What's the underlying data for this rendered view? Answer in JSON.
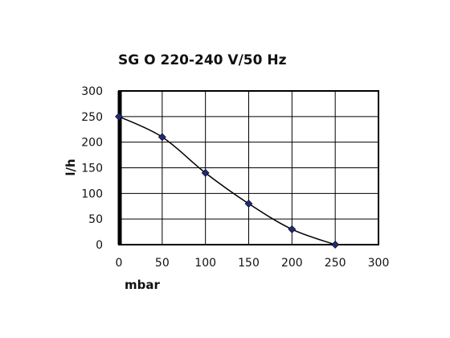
{
  "chart_data": {
    "type": "line",
    "title": "SG O 220-240 V/50 Hz",
    "xlabel": "mbar",
    "ylabel": "l/h",
    "xlim": [
      0,
      300
    ],
    "ylim": [
      0,
      300
    ],
    "x_ticks": [
      0,
      50,
      100,
      150,
      200,
      250,
      300
    ],
    "y_ticks": [
      0,
      50,
      100,
      150,
      200,
      250,
      300
    ],
    "grid": true,
    "series": [
      {
        "x": [
          0,
          50,
          100,
          150,
          200,
          250
        ],
        "y": [
          250,
          210,
          140,
          80,
          30,
          0
        ],
        "color": "#000000",
        "marker_color": "#1f2a7a"
      }
    ]
  }
}
